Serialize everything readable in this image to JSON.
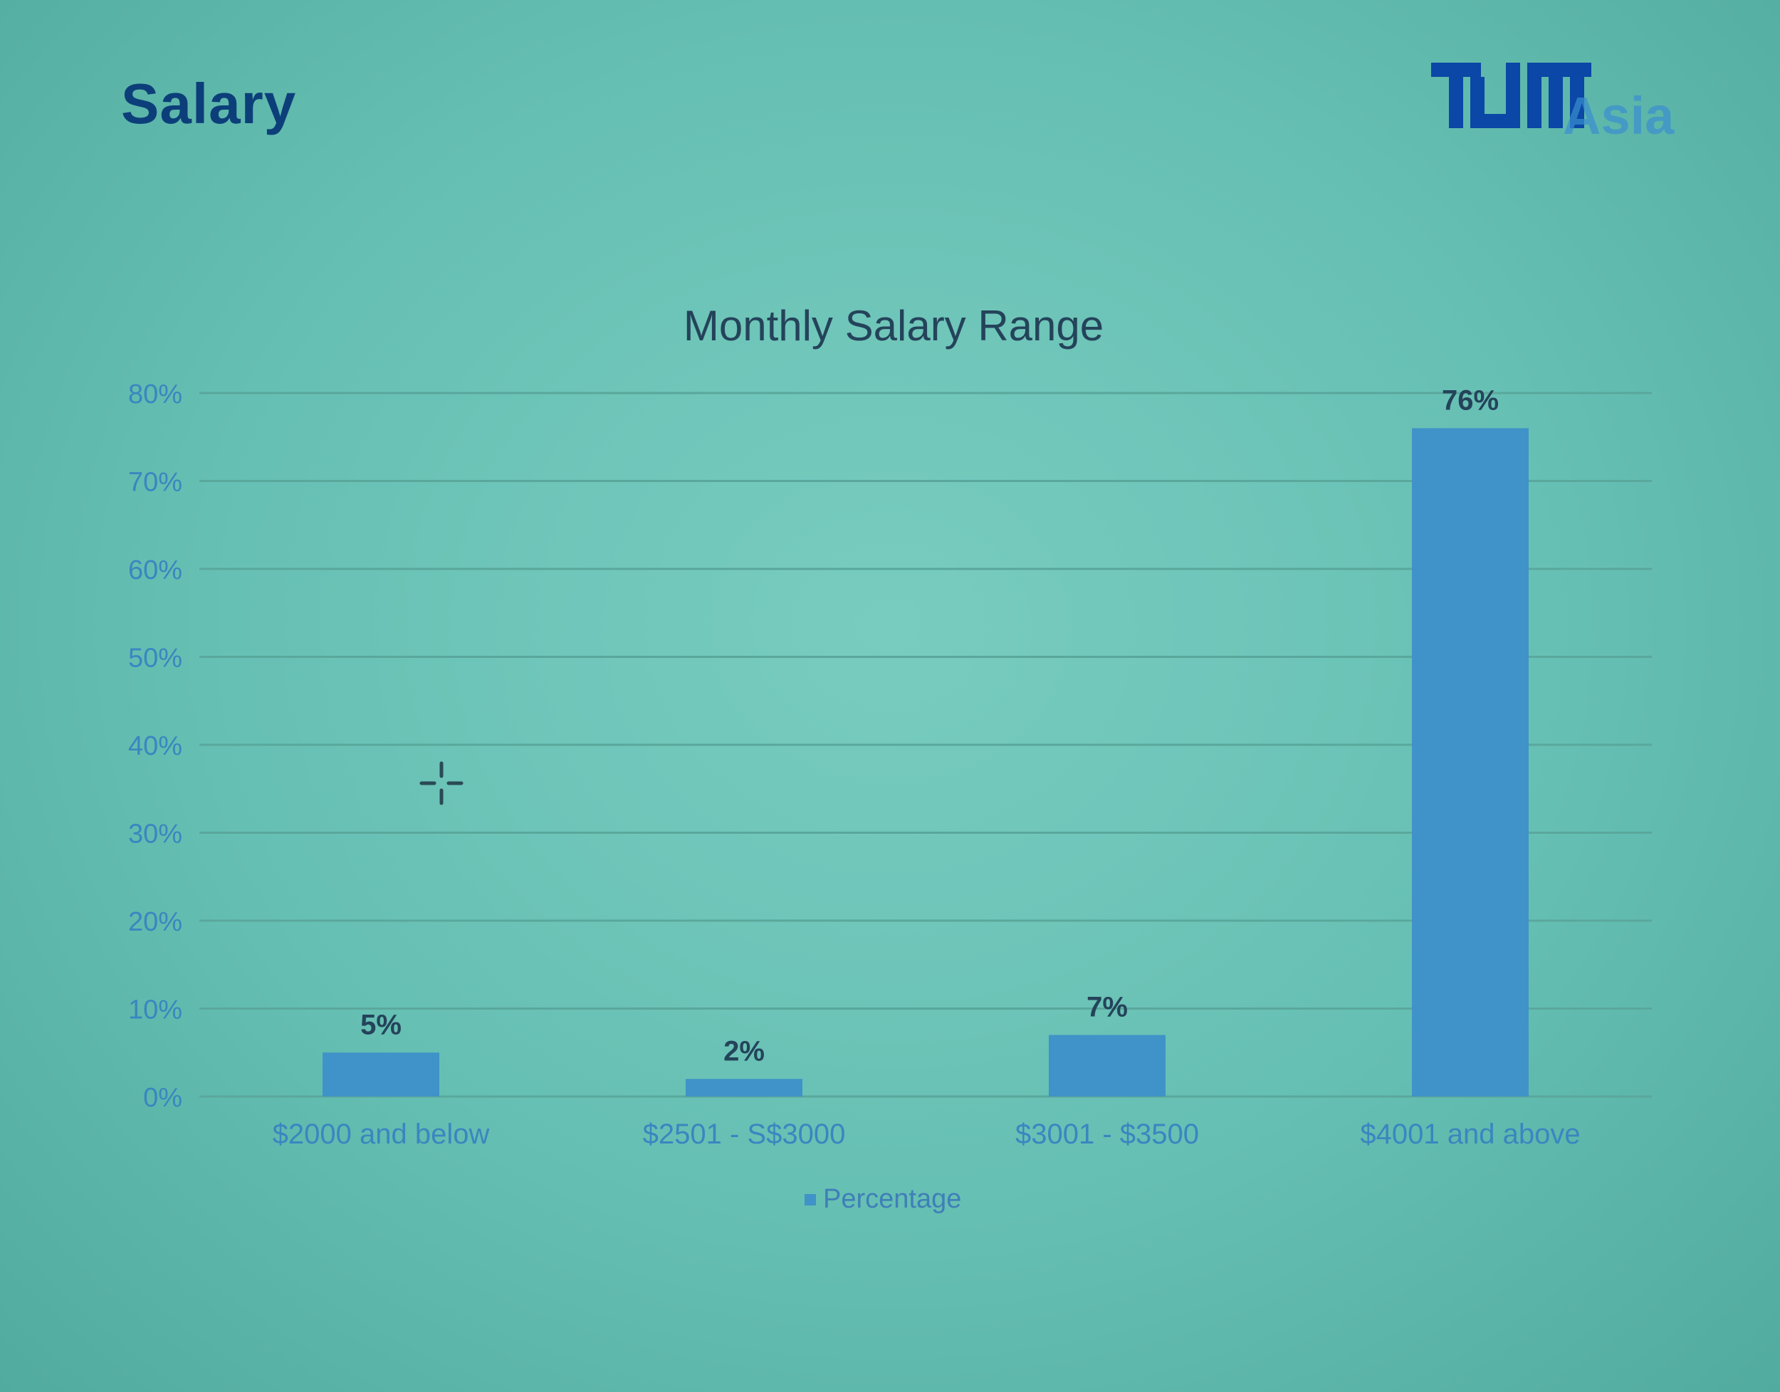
{
  "slide": {
    "title": "Salary",
    "logo": {
      "mark": "TUM",
      "text": "Asia",
      "colors": {
        "mark": "#0a47a6",
        "text": "#3a8fd0"
      }
    }
  },
  "chart_data": {
    "type": "bar",
    "title": "Monthly Salary Range",
    "categories": [
      "$2000 and below",
      "$2501 - S$3000",
      "$3001 - $3500",
      "$4001 and above"
    ],
    "series": [
      {
        "name": "Percentage",
        "values": [
          5,
          2,
          7,
          76
        ],
        "color": "#3f93c8"
      }
    ],
    "data_labels": [
      "5%",
      "2%",
      "7%",
      "76%"
    ],
    "ylim": [
      0,
      80
    ],
    "yticks": [
      "0%",
      "10%",
      "20%",
      "30%",
      "40%",
      "50%",
      "60%",
      "70%",
      "80%"
    ],
    "xlabel": "",
    "ylabel": "",
    "grid": true,
    "legend": "bottom"
  }
}
